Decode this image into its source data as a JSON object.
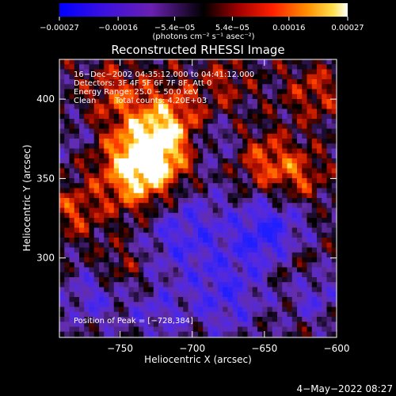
{
  "chart_data": {
    "type": "heatmap",
    "title": "Reconstructed RHESSI Image",
    "xlabel": "Heliocentric X (arcsec)",
    "ylabel": "Heliocentric Y (arcsec)",
    "xlim": [
      -792,
      -600
    ],
    "ylim": [
      250,
      425
    ],
    "x_ticks": [
      -750,
      -700,
      -650,
      -600
    ],
    "y_ticks": [
      300,
      350,
      400
    ],
    "x_tick_labels": [
      "−750",
      "−700",
      "−650",
      "−600"
    ],
    "y_tick_labels": [
      "300",
      "350",
      "400"
    ],
    "colorbar": {
      "range": [
        -0.00027,
        0.00027
      ],
      "ticks": [
        -0.00027,
        -0.00016,
        -5.4e-05,
        5.4e-05,
        0.00016,
        0.00027
      ],
      "tick_labels": [
        "−0.00027",
        "−0.00016",
        "−5.4e−05",
        "5.4e−05",
        "0.00016",
        "0.00027"
      ],
      "unit": "(photons cm⁻² s⁻¹ asec⁻²)",
      "colormap": "blue-purple-black-red-orange-yellow-white"
    },
    "annotations": [
      "16−Dec−2002 04:35:12.000 to 04:41:12.000",
      "Detectors: 3F 4F 5F 6F 7F 8F, Att 0",
      "Energy Range: 25.0 − 50.0 keV",
      "Clean",
      "Total counts: 4.20E+03",
      "Position of Peak = [−728,384]"
    ],
    "peak": {
      "x": -728,
      "y": 384
    },
    "grid": false
  },
  "footer": {
    "timestamp": "4−May−2022 08:27"
  }
}
